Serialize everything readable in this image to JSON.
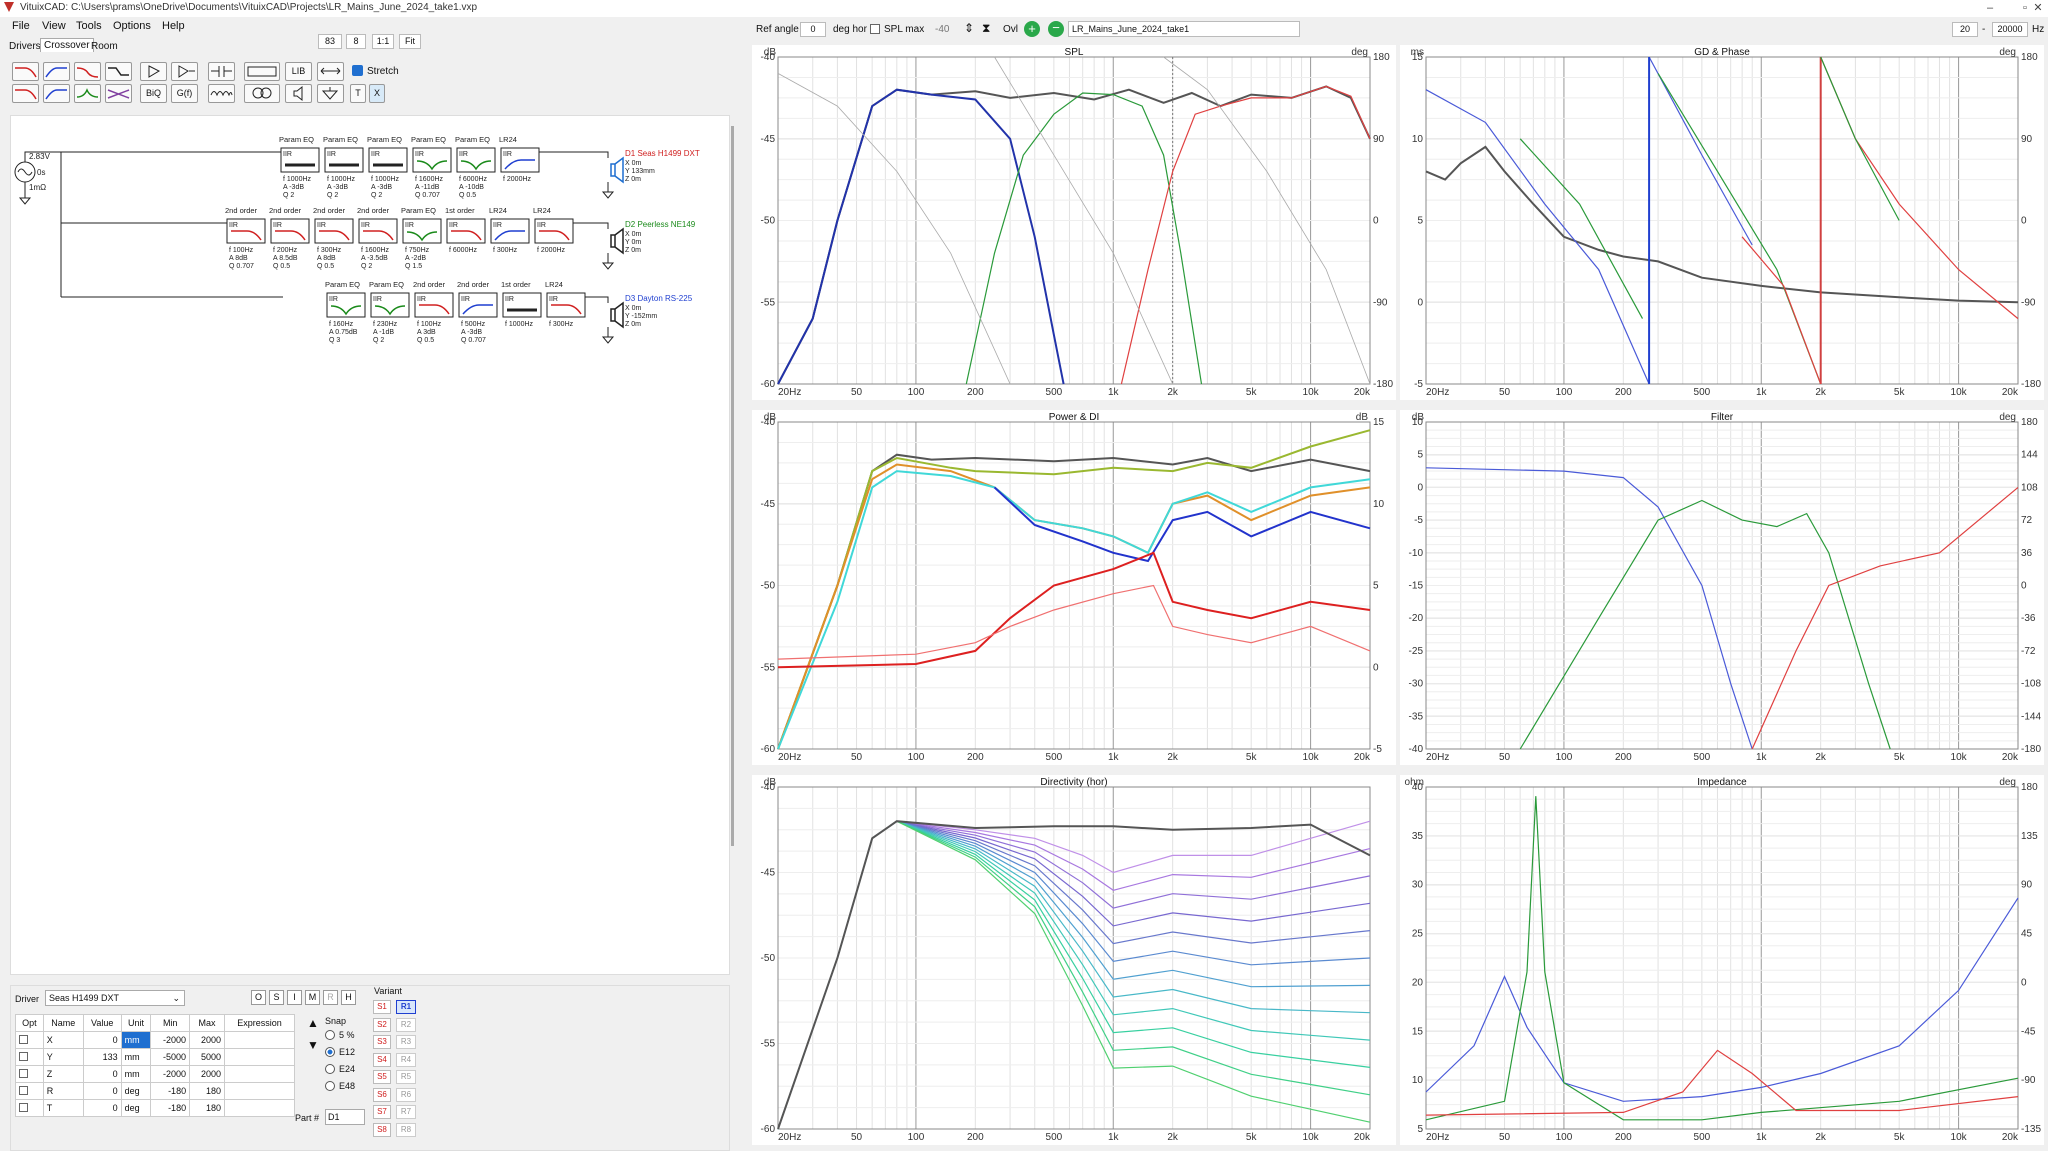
{
  "app": {
    "title": "VituixCAD: C:\\Users\\prams\\OneDrive\\Documents\\VituixCAD\\Projects\\LR_Mains_June_2024_take1.vxp"
  },
  "menu": [
    "File",
    "View",
    "Tools",
    "Options",
    "Help"
  ],
  "tabs": [
    "Drivers",
    "Crossover",
    "Room"
  ],
  "zoom_controls": {
    "a": "83",
    "b": "8",
    "ratio": "1:1",
    "fit": "Fit"
  },
  "toolbar": {
    "lib": "LIB",
    "stretch": "Stretch",
    "biq": "BiQ",
    "gf": "G(f)",
    "t": "T",
    "x": "X"
  },
  "top": {
    "ref_angle_label": "Ref angle",
    "ref_angle": "0",
    "deg_hor": "deg hor",
    "spl_max": "SPL max",
    "spl_val": "-40",
    "ovl": "Ovl",
    "project": "LR_Mains_June_2024_take1",
    "f_lo": "20",
    "f_hi": "20000",
    "hz": "Hz"
  },
  "schematic": {
    "source": [
      "2.83V",
      "0s",
      "1mΩ"
    ],
    "drivers": [
      {
        "name": "D1 Seas H1499 DXT",
        "lines": [
          "X 0m",
          "Y 133mm",
          "Z 0m"
        ],
        "color": "#d02020"
      },
      {
        "name": "D2 Peerless NE149",
        "lines": [
          "X 0m",
          "Y 0m",
          "Z 0m"
        ],
        "color": "#1a8a1a"
      },
      {
        "name": "D3 Dayton RS-225",
        "lines": [
          "X 0m",
          "Y -152mm",
          "Z 0m"
        ],
        "color": "#1f3fd0"
      }
    ],
    "row1": [
      {
        "h": "Param EQ",
        "p": [
          "f 1000Hz",
          "A -3dB",
          "Q 2"
        ]
      },
      {
        "h": "Param EQ",
        "p": [
          "f 1000Hz",
          "A -3dB",
          "Q 2"
        ]
      },
      {
        "h": "Param EQ",
        "p": [
          "f 1000Hz",
          "A -3dB",
          "Q 2"
        ]
      },
      {
        "h": "Param EQ",
        "p": [
          "f 1600Hz",
          "A -11dB",
          "Q 0.707"
        ]
      },
      {
        "h": "Param EQ",
        "p": [
          "f 6000Hz",
          "A -10dB",
          "Q 0.5"
        ]
      },
      {
        "h": "LR24",
        "p": [
          "f 2000Hz"
        ]
      }
    ],
    "row2": [
      {
        "h": "2nd order",
        "p": [
          "f 100Hz",
          "A 8dB",
          "Q 0.707"
        ]
      },
      {
        "h": "2nd order",
        "p": [
          "f 200Hz",
          "A 8.5dB",
          "Q 0.5"
        ]
      },
      {
        "h": "2nd order",
        "p": [
          "f 300Hz",
          "A 8dB",
          "Q 0.5"
        ]
      },
      {
        "h": "2nd order",
        "p": [
          "f 1600Hz",
          "A -3.5dB",
          "Q 2"
        ]
      },
      {
        "h": "Param EQ",
        "p": [
          "f 750Hz",
          "A -2dB",
          "Q 1.5"
        ]
      },
      {
        "h": "1st order",
        "p": [
          "f 6000Hz"
        ]
      },
      {
        "h": "LR24",
        "p": [
          "f 300Hz"
        ]
      },
      {
        "h": "LR24",
        "p": [
          "f 2000Hz"
        ]
      }
    ],
    "row3": [
      {
        "h": "Param EQ",
        "p": [
          "f 160Hz",
          "A 0.75dB",
          "Q 3"
        ]
      },
      {
        "h": "Param EQ",
        "p": [
          "f 230Hz",
          "A -1dB",
          "Q 2"
        ]
      },
      {
        "h": "2nd order",
        "p": [
          "f 100Hz",
          "A 3dB",
          "Q 0.5"
        ]
      },
      {
        "h": "2nd order",
        "p": [
          "f 500Hz",
          "A -3dB",
          "Q 0.707"
        ]
      },
      {
        "h": "1st order",
        "p": [
          "f 1000Hz"
        ]
      },
      {
        "h": "LR24",
        "p": [
          "f 300Hz"
        ]
      }
    ],
    "iir": "IIR"
  },
  "panel": {
    "driver_label": "Driver",
    "driver": "Seas H1499 DXT",
    "buttons": [
      "O",
      "S",
      "I",
      "M",
      "R",
      "H"
    ],
    "headers": [
      "Opt",
      "Name",
      "Value",
      "Unit",
      "Min",
      "Max",
      "Expression"
    ],
    "rows": [
      [
        "X",
        "0",
        "mm",
        "-2000",
        "2000"
      ],
      [
        "Y",
        "133",
        "mm",
        "-5000",
        "5000"
      ],
      [
        "Z",
        "0",
        "mm",
        "-2000",
        "2000"
      ],
      [
        "R",
        "0",
        "deg",
        "-180",
        "180"
      ],
      [
        "T",
        "0",
        "deg",
        "-180",
        "180"
      ]
    ],
    "snap": "Snap",
    "snap_opts": [
      "5 %",
      "E12",
      "E24",
      "E48"
    ],
    "variant": "Variant",
    "s": [
      "S1",
      "S2",
      "S3",
      "S4",
      "S5",
      "S6",
      "S7",
      "S8"
    ],
    "r": [
      "R1",
      "R2",
      "R3",
      "R4",
      "R5",
      "R6",
      "R7",
      "R8"
    ],
    "part_label": "Part #",
    "part": "D1"
  },
  "charts": [
    {
      "title": "SPL",
      "lu": "dB",
      "ru": "deg",
      "l": [
        "-40",
        "-45",
        "-50",
        "-55",
        "-60"
      ],
      "r": [
        "180",
        "90",
        "0",
        "-90",
        "-180"
      ]
    },
    {
      "title": "GD & Phase",
      "lu": "ms",
      "ru": "deg",
      "l": [
        "15",
        "10",
        "5",
        "0",
        "-5"
      ],
      "r": [
        "180",
        "90",
        "0",
        "-90",
        "-180"
      ]
    },
    {
      "title": "Power & DI",
      "lu": "dB",
      "ru": "dB",
      "l": [
        "-40",
        "-45",
        "-50",
        "-55",
        "-60"
      ],
      "r": [
        "15",
        "10",
        "5",
        "0",
        "-5"
      ]
    },
    {
      "title": "Filter",
      "lu": "dB",
      "ru": "deg",
      "l": [
        "10",
        "5",
        "0",
        "-5",
        "-10",
        "-15",
        "-20",
        "-25",
        "-30",
        "-35",
        "-40"
      ],
      "r": [
        "180",
        "144",
        "108",
        "72",
        "36",
        "0",
        "-36",
        "-72",
        "-108",
        "-144",
        "-180"
      ]
    },
    {
      "title": "Directivity (hor)",
      "lu": "dB",
      "ru": "",
      "l": [
        "-40",
        "-45",
        "-50",
        "-55",
        "-60"
      ],
      "r": []
    },
    {
      "title": "Impedance",
      "lu": "ohm",
      "ru": "deg",
      "l": [
        "40",
        "35",
        "30",
        "25",
        "20",
        "15",
        "10",
        "5"
      ],
      "r": [
        "180",
        "135",
        "90",
        "45",
        "0",
        "-45",
        "-90",
        "-135"
      ]
    }
  ],
  "xticks": [
    "20Hz",
    "50",
    "100",
    "200",
    "500",
    "1k",
    "2k",
    "5k",
    "10k",
    "20k"
  ]
}
